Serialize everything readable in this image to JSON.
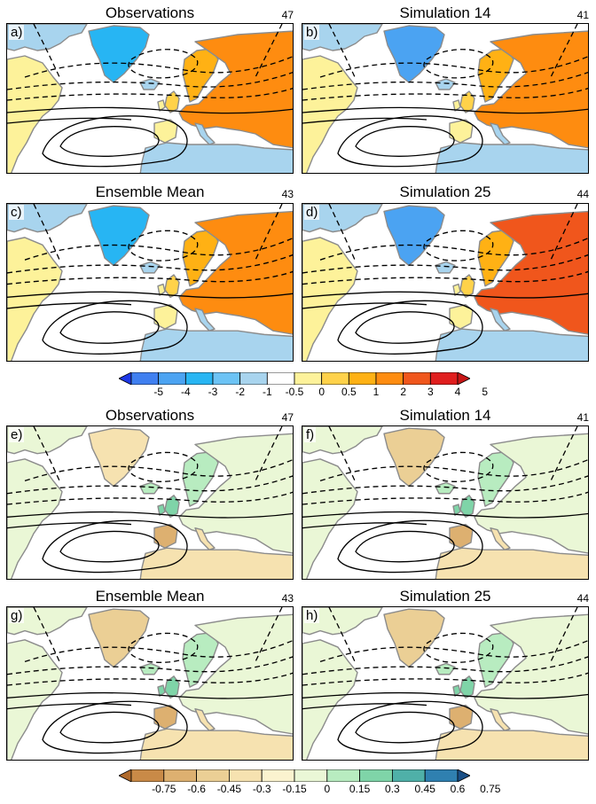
{
  "figure_top": {
    "panels": [
      {
        "id": "a",
        "title": "Observations",
        "label": "a)",
        "count": "47"
      },
      {
        "id": "b",
        "title": "Simulation 14",
        "label": "b)",
        "count": "41"
      },
      {
        "id": "c",
        "title": "Ensemble Mean",
        "label": "c)",
        "count": "43"
      },
      {
        "id": "d",
        "title": "Simulation 25",
        "label": "d)",
        "count": "44"
      }
    ],
    "colorbar": {
      "ticks": [
        "-5",
        "-4",
        "-3",
        "-2",
        "-1",
        "-0.5",
        "0",
        "0.5",
        "1",
        "2",
        "3",
        "4",
        "5"
      ],
      "colors": [
        "#1e38e6",
        "#3f7ff0",
        "#4ba3f2",
        "#27b5f3",
        "#6cc3f5",
        "#a8d4ee",
        "#ffffff",
        "#fdf29a",
        "#ffd24a",
        "#ffb114",
        "#fe8c10",
        "#f0561c",
        "#e01e1e",
        "#c81616"
      ]
    }
  },
  "figure_bottom": {
    "panels": [
      {
        "id": "e",
        "title": "Observations",
        "label": "e)",
        "count": "47"
      },
      {
        "id": "f",
        "title": "Simulation 14",
        "label": "f)",
        "count": "41"
      },
      {
        "id": "g",
        "title": "Ensemble Mean",
        "label": "g)",
        "count": "43"
      },
      {
        "id": "h",
        "title": "Simulation 25",
        "label": "h)",
        "count": "44"
      }
    ],
    "colorbar": {
      "ticks": [
        "-0.75",
        "-0.6",
        "-0.45",
        "-0.3",
        "-0.15",
        "0",
        "0.15",
        "0.3",
        "0.45",
        "0.6",
        "0.75"
      ],
      "colors": [
        "#b06a2c",
        "#c98a47",
        "#ddb070",
        "#ebcf95",
        "#f6e2b0",
        "#fbf3cf",
        "#eaf7d6",
        "#b8ecc0",
        "#7fd4a8",
        "#4fb0a8",
        "#2f80b0",
        "#1a4f86"
      ]
    }
  },
  "colors": {
    "land_base": "#ffffff",
    "ocean": "#ffffff",
    "coast": "#8c8c8c",
    "contour": "#000000"
  }
}
